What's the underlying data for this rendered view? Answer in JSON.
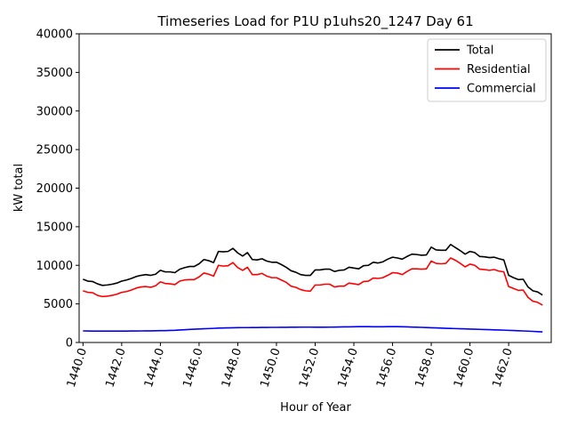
{
  "chart_data": {
    "type": "line",
    "title": "Timeseries Load for P1U p1uhs20_1247  Day 61",
    "xlabel": "Hour of Year",
    "ylabel": "kW total",
    "xlim": [
      1439.8,
      1464.2
    ],
    "ylim": [
      0,
      40000
    ],
    "xticks": [
      1440,
      1442,
      1444,
      1446,
      1448,
      1450,
      1452,
      1454,
      1456,
      1458,
      1460,
      1462
    ],
    "xtick_labels": [
      "1440.0",
      "1442.0",
      "1444.0",
      "1446.0",
      "1448.0",
      "1450.0",
      "1452.0",
      "1454.0",
      "1456.0",
      "1458.0",
      "1460.0",
      "1462.0"
    ],
    "yticks": [
      0,
      5000,
      10000,
      15000,
      20000,
      25000,
      30000,
      35000,
      40000
    ],
    "ytick_labels": [
      "0",
      "5000",
      "10000",
      "15000",
      "20000",
      "25000",
      "30000",
      "35000",
      "40000"
    ],
    "legend_position": "top-right",
    "x_start": 1440,
    "x_step": 0.25,
    "series": [
      {
        "name": "Total",
        "color": "#000000",
        "values": [
          8200,
          7950,
          7900,
          7600,
          7400,
          7450,
          7550,
          7700,
          7950,
          8100,
          8300,
          8550,
          8700,
          8800,
          8700,
          8850,
          9350,
          9150,
          9150,
          9050,
          9500,
          9700,
          9850,
          9850,
          10200,
          10750,
          10600,
          10350,
          11800,
          11750,
          11800,
          12200,
          11600,
          11200,
          11650,
          10750,
          10700,
          10850,
          10550,
          10400,
          10400,
          10100,
          9750,
          9300,
          9100,
          8800,
          8700,
          8700,
          9400,
          9400,
          9500,
          9500,
          9200,
          9350,
          9400,
          9750,
          9650,
          9550,
          9950,
          10000,
          10400,
          10300,
          10450,
          10800,
          11050,
          10950,
          10800,
          11150,
          11450,
          11400,
          11300,
          11350,
          12350,
          12000,
          11950,
          11950,
          12700,
          12300,
          11900,
          11450,
          11800,
          11650,
          11150,
          11100,
          11000,
          11050,
          10850,
          10700,
          8700,
          8400,
          8150,
          8200,
          7200,
          6700,
          6550,
          6150
        ]
      },
      {
        "name": "Residential",
        "color": "#ff0000",
        "values": [
          6700,
          6500,
          6450,
          6100,
          5950,
          6000,
          6100,
          6250,
          6500,
          6600,
          6800,
          7050,
          7200,
          7250,
          7150,
          7350,
          7850,
          7650,
          7600,
          7500,
          7950,
          8100,
          8150,
          8150,
          8500,
          9000,
          8850,
          8600,
          10000,
          9900,
          9950,
          10350,
          9700,
          9350,
          9750,
          8800,
          8800,
          8950,
          8600,
          8400,
          8400,
          8100,
          7800,
          7300,
          7150,
          6850,
          6700,
          6650,
          7450,
          7450,
          7550,
          7550,
          7200,
          7300,
          7300,
          7700,
          7600,
          7500,
          7900,
          7950,
          8350,
          8300,
          8400,
          8700,
          9050,
          9000,
          8800,
          9200,
          9550,
          9550,
          9500,
          9550,
          10550,
          10250,
          10200,
          10250,
          10950,
          10650,
          10250,
          9800,
          10150,
          10000,
          9500,
          9450,
          9350,
          9450,
          9250,
          9150,
          7250,
          7000,
          6750,
          6800,
          5850,
          5350,
          5200,
          4850
        ]
      },
      {
        "name": "Commercial",
        "color": "#0000ff",
        "values": [
          1500,
          1490,
          1480,
          1480,
          1480,
          1480,
          1480,
          1480,
          1480,
          1480,
          1490,
          1490,
          1500,
          1510,
          1510,
          1520,
          1530,
          1540,
          1560,
          1580,
          1620,
          1650,
          1690,
          1720,
          1750,
          1780,
          1800,
          1830,
          1860,
          1880,
          1900,
          1910,
          1920,
          1930,
          1930,
          1940,
          1940,
          1950,
          1950,
          1960,
          1960,
          1970,
          1970,
          1980,
          1980,
          1990,
          1990,
          1990,
          1980,
          1980,
          1980,
          1990,
          2000,
          2010,
          2020,
          2030,
          2040,
          2050,
          2050,
          2050,
          2040,
          2040,
          2040,
          2050,
          2050,
          2050,
          2040,
          2020,
          2000,
          1980,
          1960,
          1940,
          1910,
          1890,
          1860,
          1840,
          1820,
          1800,
          1780,
          1760,
          1740,
          1720,
          1700,
          1680,
          1660,
          1640,
          1620,
          1600,
          1570,
          1550,
          1520,
          1500,
          1470,
          1440,
          1410,
          1380
        ]
      }
    ]
  }
}
